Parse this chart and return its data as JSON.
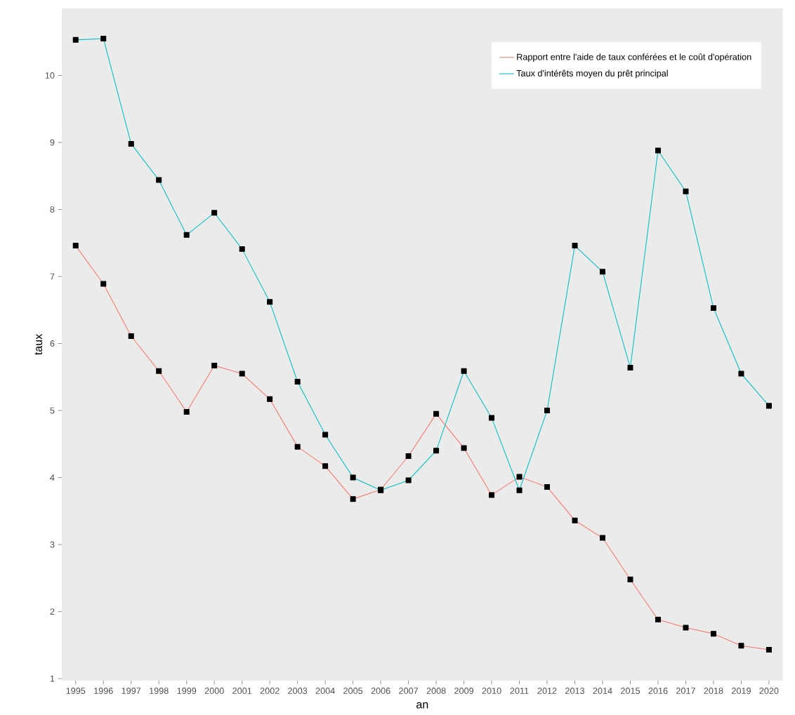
{
  "chart_data": {
    "type": "line",
    "xlabel": "an",
    "ylabel": "taux",
    "categories": [
      "1995",
      "1996",
      "1997",
      "1998",
      "1999",
      "2000",
      "2001",
      "2002",
      "2003",
      "2004",
      "2005",
      "2006",
      "2007",
      "2008",
      "2009",
      "2010",
      "2011",
      "2012",
      "2013",
      "2014",
      "2015",
      "2016",
      "2017",
      "2018",
      "2019",
      "2020"
    ],
    "series": [
      {
        "name": "Rapport entre l'aide de taux conférées et le coût d'opération",
        "color": "#f8766d",
        "values": [
          7.46,
          6.89,
          6.11,
          5.59,
          4.98,
          5.67,
          5.55,
          5.17,
          4.46,
          4.17,
          3.68,
          3.82,
          4.32,
          4.95,
          4.44,
          3.74,
          4.01,
          3.86,
          3.36,
          3.1,
          2.48,
          1.88,
          1.76,
          1.67,
          1.49,
          1.43
        ]
      },
      {
        "name": "Taux d'intérêts moyen du prêt principal",
        "color": "#00bfc4",
        "values": [
          10.53,
          10.55,
          8.98,
          8.44,
          7.62,
          7.95,
          7.41,
          6.62,
          5.43,
          4.64,
          4.0,
          3.81,
          3.96,
          4.4,
          5.59,
          4.89,
          3.81,
          5.0,
          7.46,
          7.07,
          5.64,
          8.88,
          8.27,
          6.53,
          5.55,
          5.07
        ]
      }
    ],
    "ylim": [
      0.97,
      11.0
    ],
    "yticks": [
      1,
      2,
      3,
      4,
      5,
      6,
      7,
      8,
      9,
      10
    ],
    "legend": "top right",
    "marker": "square",
    "line_style": "solid"
  }
}
